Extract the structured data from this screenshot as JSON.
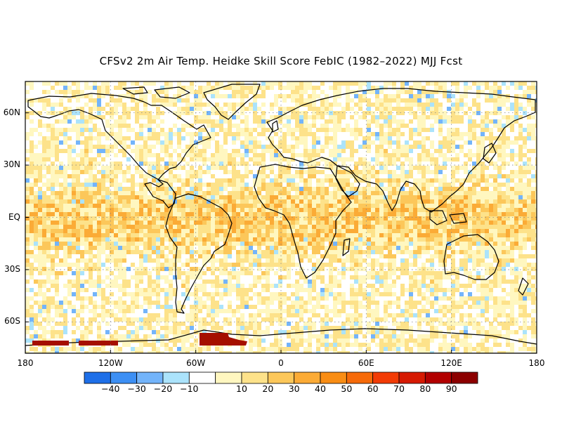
{
  "title": "CFSv2 2m Air Temp. Heidke Skill Score FebIC (1982–2022) MJJ Fcst",
  "map": {
    "projection": "equirectangular",
    "lon_range": [
      -180,
      180
    ],
    "lat_range": [
      -78,
      78
    ],
    "gridlines": "dotted"
  },
  "lat_ticks": [
    {
      "lat": 60,
      "label": "60N"
    },
    {
      "lat": 30,
      "label": "30N"
    },
    {
      "lat": 0,
      "label": "EQ"
    },
    {
      "lat": -30,
      "label": "30S"
    },
    {
      "lat": -60,
      "label": "60S"
    }
  ],
  "lon_ticks": [
    {
      "lon": -180,
      "label": "180"
    },
    {
      "lon": -120,
      "label": "120W"
    },
    {
      "lon": -60,
      "label": "60W"
    },
    {
      "lon": 0,
      "label": "0"
    },
    {
      "lon": 60,
      "label": "60E"
    },
    {
      "lon": 120,
      "label": "120E"
    },
    {
      "lon": 180,
      "label": "180"
    }
  ],
  "colorbar": {
    "colors": [
      "#1e6fe8",
      "#3c8ff4",
      "#73b4fa",
      "#abe3fb",
      "#ffffff",
      "#fff7c0",
      "#fde28a",
      "#fcc75a",
      "#fbab36",
      "#f98d14",
      "#f66a09",
      "#f23b05",
      "#d61a02",
      "#b20000",
      "#8c0000"
    ],
    "labels": [
      "−40",
      "−30",
      "−20",
      "−10",
      "10",
      "20",
      "30",
      "40",
      "50",
      "60",
      "70",
      "80",
      "90"
    ]
  }
}
